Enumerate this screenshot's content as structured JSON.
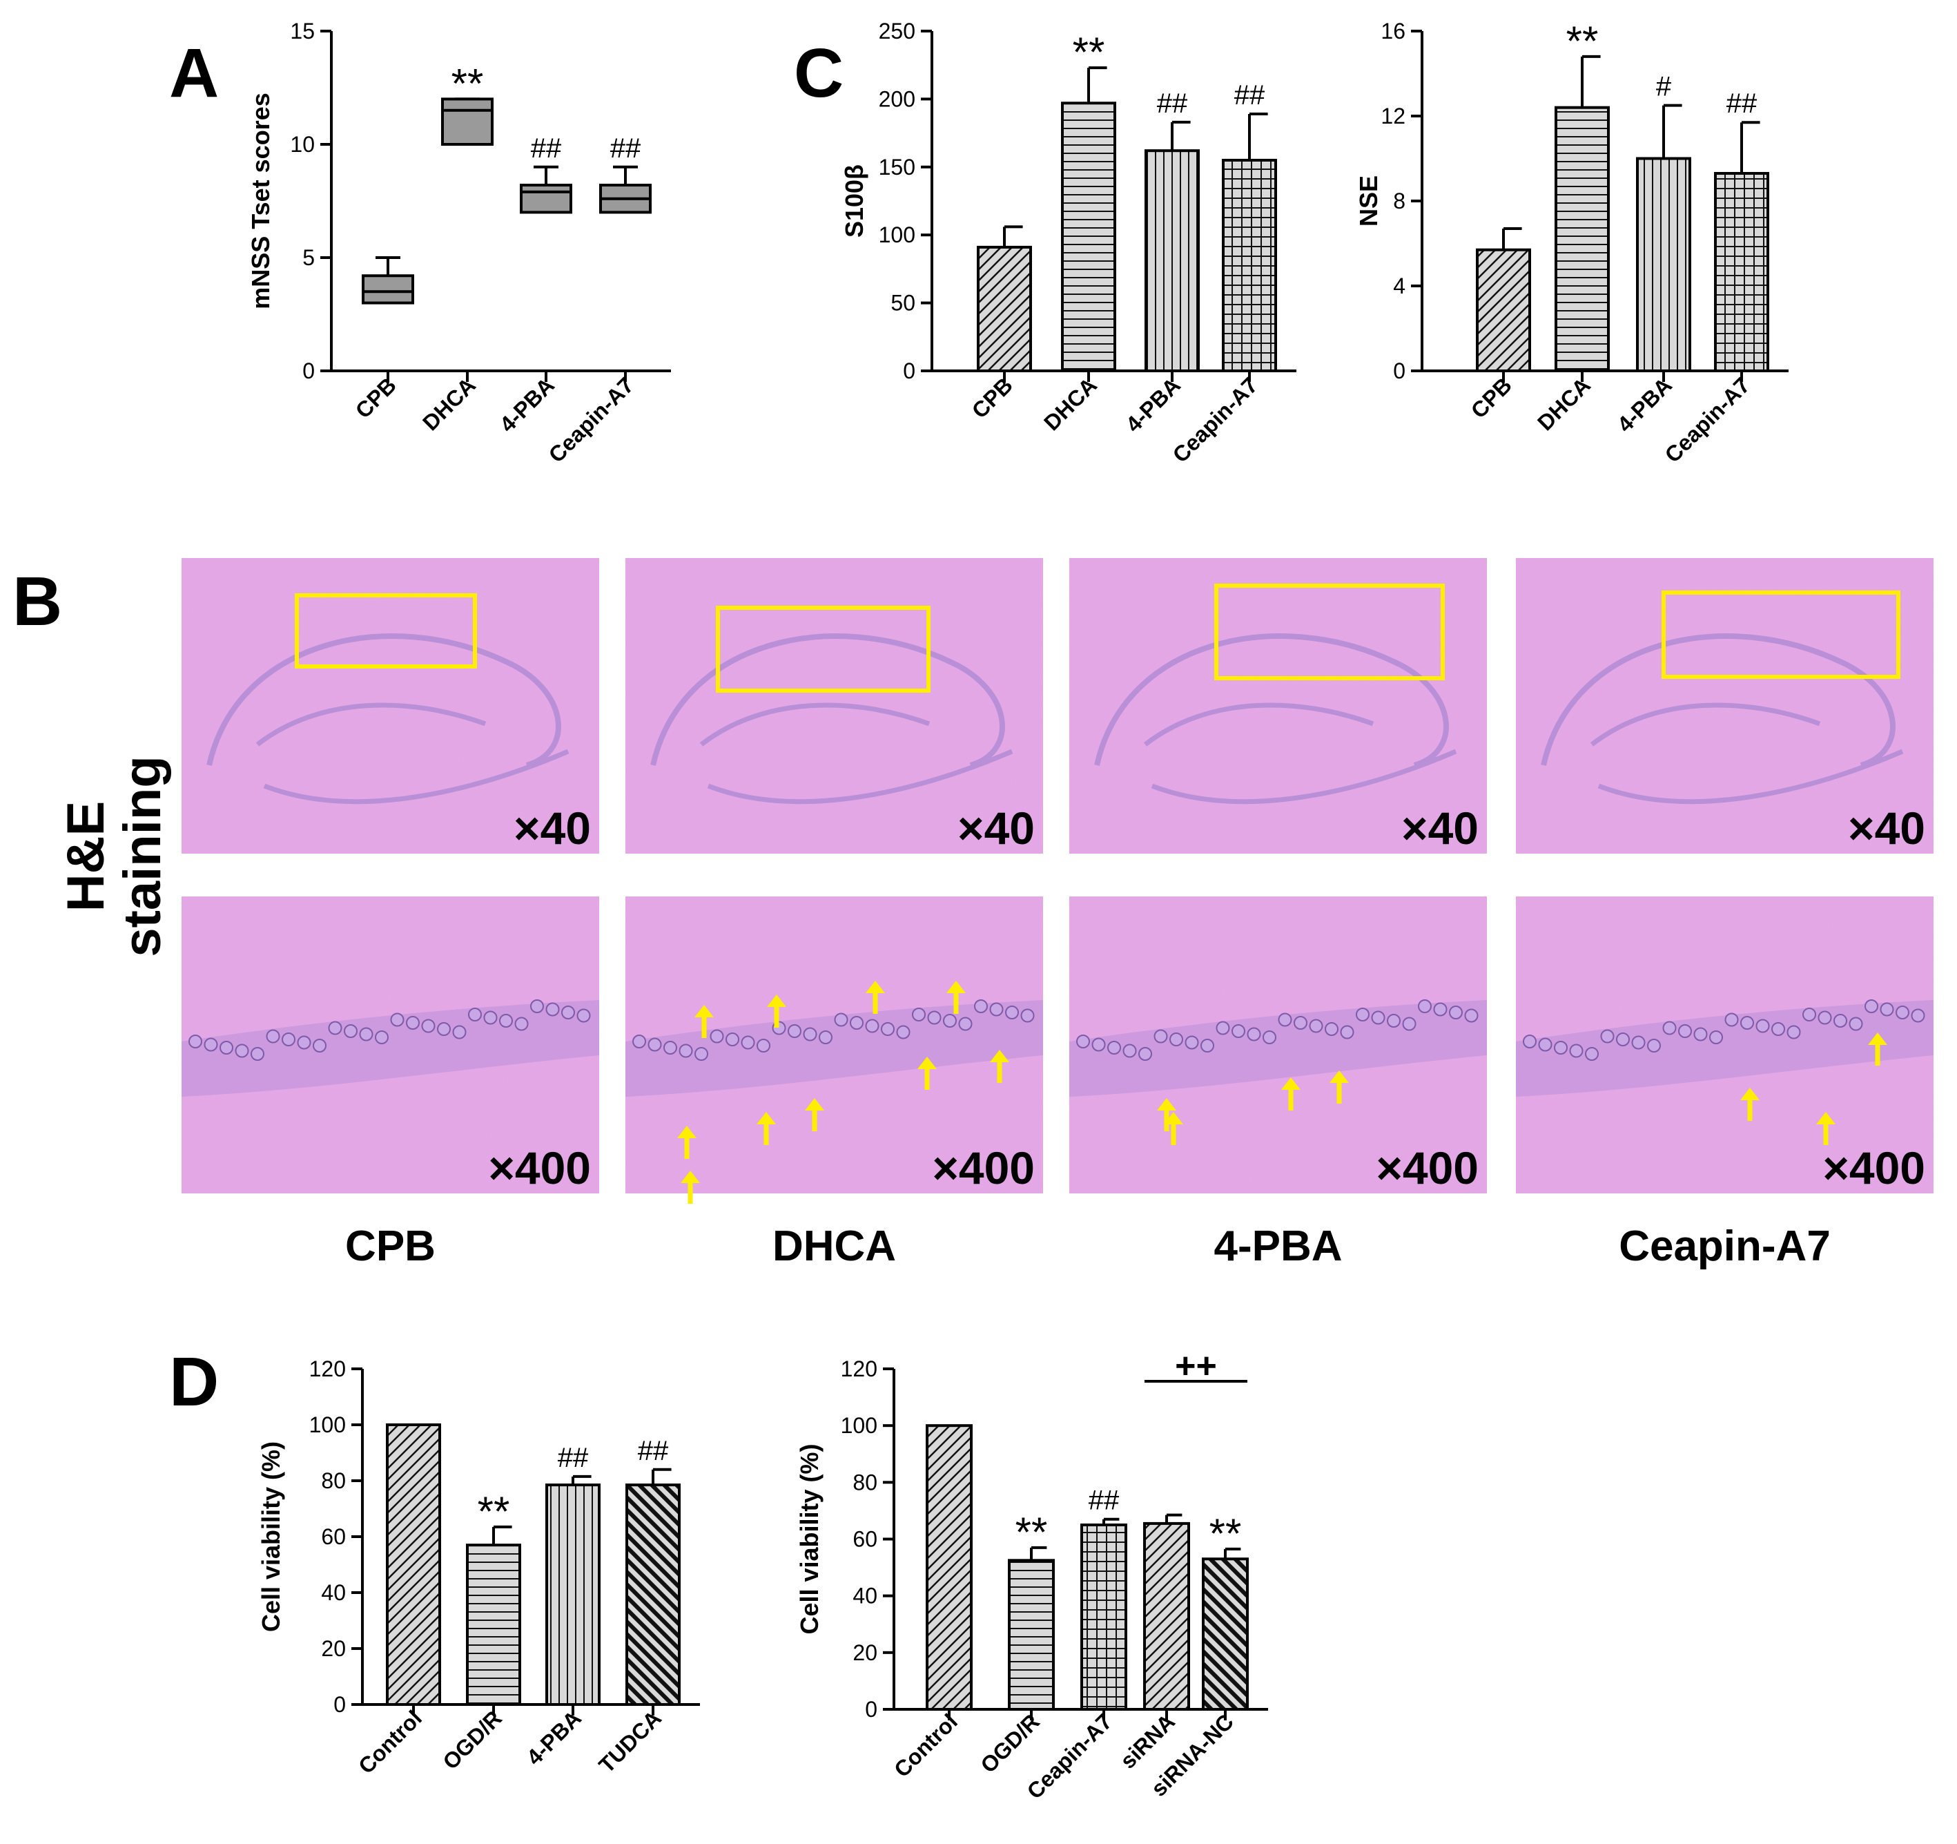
{
  "panel_letters": {
    "a": "A",
    "b": "B",
    "c": "C",
    "d": "D"
  },
  "colors": {
    "gray_box": "#9a9a9a",
    "bar_fill": "#d9d9d9",
    "tissue": "#e7a8e8",
    "tissue_dark": "#b98fd8",
    "roi": "#ffee00",
    "arrow": "#ffee00"
  },
  "histology": {
    "side_label_line1": "H&E",
    "side_label_line2": "staining",
    "groups": [
      "CPB",
      "DHCA",
      "4-PBA",
      "Ceapin-A7"
    ],
    "top_magnification": "×40",
    "bottom_magnification": "×400",
    "arrows_per_group": [
      0,
      10,
      4,
      3
    ]
  },
  "chart_data": [
    {
      "id": "A",
      "type": "box",
      "title": "",
      "xlabel": "",
      "ylabel": "mNSS Tset scores",
      "ylim": [
        0,
        15
      ],
      "yticks": [
        0,
        5,
        10,
        15
      ],
      "categories": [
        "CPB",
        "DHCA",
        "4-PBA",
        "Ceapin-A7"
      ],
      "boxes": [
        {
          "min": 3,
          "q1": 3,
          "median": 3.5,
          "q3": 4.2,
          "max": 5,
          "label": ""
        },
        {
          "min": 10,
          "q1": 10,
          "median": 11.5,
          "q3": 12,
          "max": 12,
          "label": "**"
        },
        {
          "min": 7,
          "q1": 7,
          "median": 7.9,
          "q3": 8.2,
          "max": 9,
          "label": "##"
        },
        {
          "min": 7,
          "q1": 7,
          "median": 7.6,
          "q3": 8.2,
          "max": 9,
          "label": "##"
        }
      ]
    },
    {
      "id": "C1",
      "type": "bar",
      "ylabel": "S100β",
      "ylim": [
        0,
        250
      ],
      "yticks": [
        0,
        50,
        100,
        150,
        200,
        250
      ],
      "categories": [
        "CPB",
        "DHCA",
        "4-PBA",
        "Ceapin-A7"
      ],
      "values": [
        91,
        197,
        162,
        155
      ],
      "errors": [
        15,
        26,
        21,
        34
      ],
      "patterns": [
        "diag",
        "hlines",
        "vlines",
        "grid"
      ],
      "labels": [
        "",
        "**",
        "##",
        "##"
      ]
    },
    {
      "id": "C2",
      "type": "bar",
      "ylabel": "NSE",
      "ylim": [
        0,
        16
      ],
      "yticks": [
        0,
        4,
        8,
        12,
        16
      ],
      "categories": [
        "CPB",
        "DHCA",
        "4-PBA",
        "Ceapin-A7"
      ],
      "values": [
        5.7,
        12.4,
        10,
        9.3
      ],
      "errors": [
        1,
        2.4,
        2.5,
        2.4
      ],
      "patterns": [
        "diag",
        "hlines",
        "vlines",
        "grid"
      ],
      "labels": [
        "",
        "**",
        "#",
        "##"
      ]
    },
    {
      "id": "D1",
      "type": "bar",
      "ylabel": "Cell viability (%)",
      "ylim": [
        0,
        120
      ],
      "yticks": [
        0,
        20,
        40,
        60,
        80,
        100,
        120
      ],
      "categories": [
        "Control",
        "OGD/R",
        "4-PBA",
        "TUDCA"
      ],
      "values": [
        100,
        57,
        78.5,
        78.5
      ],
      "errors": [
        0,
        6.5,
        3,
        5.5
      ],
      "patterns": [
        "diag",
        "hlines",
        "vlines",
        "rdiag"
      ],
      "labels": [
        "",
        "**",
        "##",
        "##"
      ]
    },
    {
      "id": "D2",
      "type": "bar",
      "ylabel": "Cell viability (%)",
      "ylim": [
        0,
        120
      ],
      "yticks": [
        0,
        20,
        40,
        60,
        80,
        100,
        120
      ],
      "categories": [
        "Control",
        "OGD/R",
        "Ceapin-A7",
        "siRNA",
        "siRNA-NC"
      ],
      "values": [
        100,
        52.5,
        65,
        65.5,
        53
      ],
      "errors": [
        0,
        4.5,
        2,
        3,
        3.5
      ],
      "patterns": [
        "diag",
        "hlines",
        "grid",
        "diag",
        "rdiag"
      ],
      "labels": [
        "",
        "**",
        "##",
        "",
        "**"
      ],
      "bracket_label": "++"
    }
  ]
}
